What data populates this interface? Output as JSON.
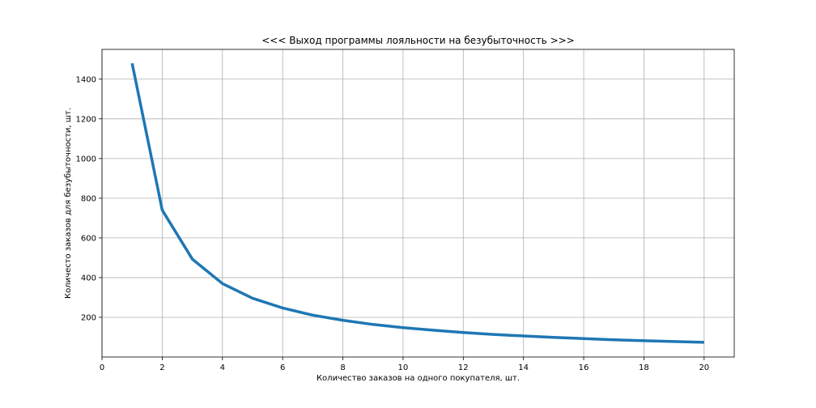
{
  "chart_data": {
    "type": "line",
    "title": "<<< Выход программы лояльности на безубыточность >>>",
    "xlabel": "Количество заказов на одного покупателя, шт.",
    "ylabel": "Количесто заказов для безубыточности, шт.",
    "xlim": [
      0,
      21
    ],
    "ylim": [
      0,
      1550
    ],
    "xticks": [
      0,
      2,
      4,
      6,
      8,
      10,
      12,
      14,
      16,
      18,
      20
    ],
    "yticks": [
      200,
      400,
      600,
      800,
      1000,
      1200,
      1400
    ],
    "grid": true,
    "series": [
      {
        "color": "#1f77b4",
        "x": [
          1,
          2,
          3,
          4,
          5,
          6,
          7,
          8,
          9,
          10,
          11,
          12,
          13,
          14,
          15,
          16,
          17,
          18,
          19,
          20
        ],
        "y": [
          1480,
          740,
          493,
          370,
          296,
          247,
          211,
          185,
          164,
          148,
          135,
          123,
          114,
          106,
          99,
          93,
          87,
          82,
          78,
          74
        ]
      }
    ]
  }
}
